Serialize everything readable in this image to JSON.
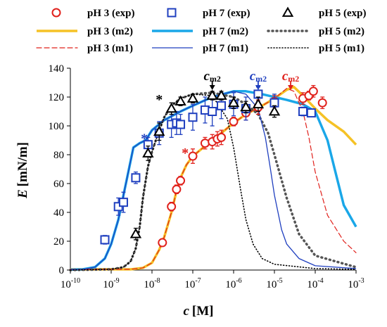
{
  "chart_data": {
    "type": "scatter",
    "xlabel_var": "c",
    "xlabel_unit": "[M]",
    "ylabel_var": "E",
    "ylabel_unit": "[mN/m]",
    "x_scale": "log",
    "xlim": [
      1e-10,
      0.001
    ],
    "ylim": [
      0,
      140
    ],
    "x_ticks": [
      {
        "value": 1e-10,
        "base": "10",
        "exp": "-10"
      },
      {
        "value": 1e-09,
        "base": "10",
        "exp": "-9"
      },
      {
        "value": 1e-08,
        "base": "10",
        "exp": "-8"
      },
      {
        "value": 1e-07,
        "base": "10",
        "exp": "-7"
      },
      {
        "value": 1e-06,
        "base": "10",
        "exp": "-6"
      },
      {
        "value": 1e-05,
        "base": "10",
        "exp": "-5"
      },
      {
        "value": 0.0001,
        "base": "10",
        "exp": "-4"
      },
      {
        "value": 0.001,
        "base": "10",
        "exp": "-3"
      }
    ],
    "y_ticks": [
      0,
      20,
      40,
      60,
      80,
      100,
      120,
      140
    ],
    "grid": false,
    "legend_position": "top",
    "series": [
      {
        "name": "pH 3 (exp)",
        "kind": "points",
        "marker": "circle",
        "color": "#e0201b",
        "points": [
          [
            1.8e-08,
            19,
            2
          ],
          [
            3e-08,
            44,
            3
          ],
          [
            4e-08,
            56,
            3
          ],
          [
            5e-08,
            62,
            3
          ],
          [
            1e-07,
            79,
            5
          ],
          [
            2e-07,
            88,
            4
          ],
          [
            3e-07,
            89,
            5
          ],
          [
            4e-07,
            91,
            5
          ],
          [
            5e-07,
            92,
            5
          ],
          [
            1e-06,
            103,
            3
          ],
          [
            2e-06,
            109,
            5
          ],
          [
            4e-06,
            113,
            5
          ],
          [
            1e-05,
            117,
            4
          ],
          [
            5e-05,
            119,
            4
          ],
          [
            7e-05,
            121,
            3
          ],
          [
            9e-05,
            124,
            4
          ],
          [
            0.00015,
            116,
            4
          ]
        ]
      },
      {
        "name": "pH 7 (exp)",
        "kind": "points",
        "marker": "square",
        "color": "#1f3fbf",
        "points": [
          [
            7e-10,
            21,
            3
          ],
          [
            1.5e-09,
            44,
            6
          ],
          [
            2e-09,
            47,
            7
          ],
          [
            4e-09,
            64,
            4
          ],
          [
            8e-09,
            87,
            5
          ],
          [
            1.5e-08,
            95,
            8
          ],
          [
            3e-08,
            101,
            9
          ],
          [
            4e-08,
            102,
            8
          ],
          [
            5e-08,
            101,
            7
          ],
          [
            1e-07,
            106,
            9
          ],
          [
            2e-07,
            111,
            9
          ],
          [
            3e-07,
            110,
            10
          ],
          [
            5e-07,
            114,
            9
          ],
          [
            1e-06,
            115,
            8
          ],
          [
            2e-06,
            112,
            8
          ],
          [
            4e-06,
            122,
            5
          ],
          [
            1e-05,
            116,
            6
          ],
          [
            5e-05,
            110,
            3
          ],
          [
            8e-05,
            109,
            2
          ]
        ]
      },
      {
        "name": "pH 5 (exp)",
        "kind": "points",
        "marker": "triangle",
        "color": "#000000",
        "points": [
          [
            4e-09,
            25,
            4
          ],
          [
            8e-09,
            81,
            5
          ],
          [
            1.5e-08,
            96,
            6
          ],
          [
            3e-08,
            112,
            4
          ],
          [
            5e-08,
            117,
            3
          ],
          [
            1e-07,
            119,
            3
          ],
          [
            3e-07,
            121,
            3
          ],
          [
            5e-07,
            121,
            3
          ],
          [
            1e-06,
            116,
            4
          ],
          [
            2e-06,
            113,
            4
          ],
          [
            4e-06,
            115,
            5
          ],
          [
            1e-05,
            110,
            4
          ]
        ]
      },
      {
        "name": "pH 3 (m2)",
        "kind": "line",
        "color": "#f5c226",
        "width": 3.5,
        "dash": "",
        "points": [
          [
            1e-10,
            0.5
          ],
          [
            3e-09,
            0.5
          ],
          [
            6e-09,
            1.5
          ],
          [
            1e-08,
            5
          ],
          [
            1.5e-08,
            14
          ],
          [
            2e-08,
            23
          ],
          [
            3e-08,
            40
          ],
          [
            4e-08,
            55
          ],
          [
            5e-08,
            64
          ],
          [
            7e-08,
            73
          ],
          [
            1e-07,
            79
          ],
          [
            2e-07,
            86
          ],
          [
            5e-07,
            95
          ],
          [
            1e-06,
            102
          ],
          [
            2e-06,
            108
          ],
          [
            5e-06,
            114
          ],
          [
            1e-05,
            119
          ],
          [
            2e-05,
            125
          ],
          [
            3e-05,
            127
          ],
          [
            5e-05,
            121
          ],
          [
            0.0001,
            112
          ],
          [
            0.0002,
            104
          ],
          [
            0.0005,
            96
          ],
          [
            0.001,
            87
          ]
        ]
      },
      {
        "name": "pH 3 (m1)",
        "kind": "line",
        "color": "#e0201b",
        "width": 1.2,
        "dash": "7,4",
        "points": [
          [
            1e-10,
            0.5
          ],
          [
            3e-09,
            0.5
          ],
          [
            6e-09,
            1.5
          ],
          [
            1e-08,
            5
          ],
          [
            1.5e-08,
            14
          ],
          [
            2e-08,
            23
          ],
          [
            3e-08,
            40
          ],
          [
            4e-08,
            55
          ],
          [
            5e-08,
            64
          ],
          [
            7e-08,
            73
          ],
          [
            1e-07,
            79
          ],
          [
            2e-07,
            86
          ],
          [
            5e-07,
            95
          ],
          [
            1e-06,
            102
          ],
          [
            2e-06,
            108
          ],
          [
            5e-06,
            114
          ],
          [
            1e-05,
            119
          ],
          [
            2e-05,
            126
          ],
          [
            3e-05,
            124
          ],
          [
            5e-05,
            110
          ],
          [
            7e-05,
            92
          ],
          [
            0.0001,
            68
          ],
          [
            0.0002,
            38
          ],
          [
            0.0005,
            20
          ],
          [
            0.001,
            12
          ]
        ]
      },
      {
        "name": "pH 7 (m2)",
        "kind": "line",
        "color": "#1aa7e8",
        "width": 3.5,
        "dash": "",
        "points": [
          [
            1e-10,
            0.3
          ],
          [
            2e-10,
            0.5
          ],
          [
            4e-10,
            2
          ],
          [
            7e-10,
            8
          ],
          [
            1e-09,
            18
          ],
          [
            1.5e-09,
            35
          ],
          [
            2.5e-09,
            65
          ],
          [
            3.5e-09,
            85
          ],
          [
            5e-09,
            88
          ],
          [
            7e-09,
            90
          ],
          [
            1e-08,
            97
          ],
          [
            2e-08,
            104
          ],
          [
            5e-08,
            110
          ],
          [
            1e-07,
            114
          ],
          [
            3e-07,
            120
          ],
          [
            1e-06,
            124
          ],
          [
            2e-06,
            124
          ],
          [
            5e-06,
            122
          ],
          [
            1e-05,
            120
          ],
          [
            2e-05,
            118
          ],
          [
            5e-05,
            115
          ],
          [
            0.0001,
            110
          ],
          [
            0.0002,
            90
          ],
          [
            0.0003,
            70
          ],
          [
            0.0005,
            45
          ],
          [
            0.001,
            30
          ]
        ]
      },
      {
        "name": "pH 7 (m1)",
        "kind": "line",
        "color": "#1f3fbf",
        "width": 1.3,
        "dash": "",
        "points": [
          [
            1e-10,
            0.3
          ],
          [
            2e-10,
            0.5
          ],
          [
            4e-10,
            2
          ],
          [
            7e-10,
            8
          ],
          [
            1e-09,
            18
          ],
          [
            1.5e-09,
            35
          ],
          [
            2.5e-09,
            65
          ],
          [
            3.5e-09,
            85
          ],
          [
            5e-09,
            88
          ],
          [
            7e-09,
            90
          ],
          [
            1e-08,
            97
          ],
          [
            2e-08,
            104
          ],
          [
            5e-08,
            110
          ],
          [
            1e-07,
            114
          ],
          [
            3e-07,
            120
          ],
          [
            1e-06,
            124
          ],
          [
            2e-06,
            122
          ],
          [
            4e-06,
            112
          ],
          [
            6e-06,
            92
          ],
          [
            8e-06,
            70
          ],
          [
            1e-05,
            52
          ],
          [
            1.5e-05,
            28
          ],
          [
            2e-05,
            18
          ],
          [
            4e-05,
            8
          ],
          [
            0.0001,
            3
          ],
          [
            0.001,
            1
          ]
        ]
      },
      {
        "name": "pH 5 (m2)",
        "kind": "line",
        "color": "#555555",
        "width": 3.5,
        "dash": "1,5",
        "points": [
          [
            1e-10,
            0
          ],
          [
            1e-09,
            0.5
          ],
          [
            2e-09,
            2
          ],
          [
            3e-09,
            6
          ],
          [
            4e-09,
            15
          ],
          [
            5e-09,
            30
          ],
          [
            6e-09,
            50
          ],
          [
            7e-09,
            62
          ],
          [
            8e-09,
            72
          ],
          [
            1e-08,
            82
          ],
          [
            1.5e-08,
            97
          ],
          [
            2e-08,
            106
          ],
          [
            3e-08,
            114
          ],
          [
            5e-08,
            119
          ],
          [
            1e-07,
            122
          ],
          [
            3e-07,
            123
          ],
          [
            1e-06,
            120
          ],
          [
            2e-06,
            115
          ],
          [
            4e-06,
            108
          ],
          [
            7e-06,
            95
          ],
          [
            1e-05,
            80
          ],
          [
            2e-05,
            50
          ],
          [
            4e-05,
            25
          ],
          [
            0.0001,
            10
          ],
          [
            0.001,
            2
          ]
        ]
      },
      {
        "name": "pH 5 (m1)",
        "kind": "line",
        "color": "#000000",
        "width": 1.6,
        "dash": "1,3",
        "points": [
          [
            1e-10,
            0
          ],
          [
            1e-09,
            0.5
          ],
          [
            2e-09,
            2
          ],
          [
            3e-09,
            6
          ],
          [
            4e-09,
            15
          ],
          [
            5e-09,
            30
          ],
          [
            6e-09,
            50
          ],
          [
            7e-09,
            62
          ],
          [
            8e-09,
            72
          ],
          [
            1e-08,
            82
          ],
          [
            1.5e-08,
            97
          ],
          [
            2e-08,
            106
          ],
          [
            3e-08,
            114
          ],
          [
            5e-08,
            119
          ],
          [
            1e-07,
            122
          ],
          [
            3e-07,
            121
          ],
          [
            7e-07,
            105
          ],
          [
            1e-06,
            85
          ],
          [
            1.5e-06,
            55
          ],
          [
            2e-06,
            35
          ],
          [
            3e-06,
            18
          ],
          [
            5e-06,
            8
          ],
          [
            1e-05,
            4
          ],
          [
            0.0001,
            1
          ],
          [
            0.001,
            0.5
          ]
        ]
      }
    ],
    "annotations": [
      {
        "kind": "cm2",
        "base": "c",
        "sub": "m2",
        "x": 3e-07,
        "color": "#000000"
      },
      {
        "kind": "cm2",
        "base": "c",
        "sub": "m2",
        "x": 4e-06,
        "color": "#1f3fbf"
      },
      {
        "kind": "cm2",
        "base": "c",
        "sub": "m2",
        "x": 2.5e-05,
        "color": "#e0201b"
      },
      {
        "kind": "star",
        "text": "*",
        "x": 6.5e-09,
        "y": 92,
        "color": "#1f3fbf"
      },
      {
        "kind": "star",
        "text": "*",
        "x": 1.5e-08,
        "y": 119,
        "color": "#000000"
      },
      {
        "kind": "star",
        "text": "*",
        "x": 6.5e-08,
        "y": 82,
        "color": "#e0201b"
      }
    ]
  }
}
